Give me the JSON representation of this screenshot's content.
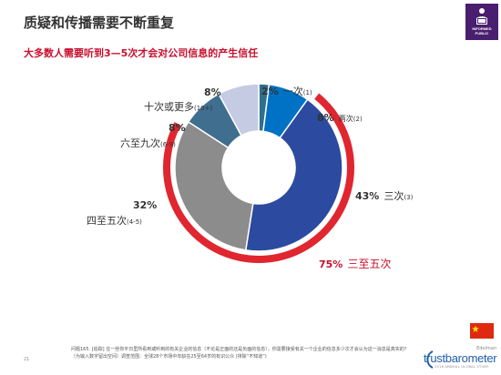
{
  "title": "质疑和传播需要不断重复",
  "subtitle": "大多数人需要听到3—5次才会对公司信息的产生信任",
  "badge": {
    "line1": "INFORMED",
    "line2": "PUBLIC"
  },
  "chart_data": {
    "type": "pie",
    "donut": true,
    "slices": [
      {
        "label": "一次",
        "sub": "(1)",
        "pct_label": "2%",
        "value": 2,
        "color": "#2e6f8e"
      },
      {
        "label": "两次",
        "sub": "(2)",
        "pct_label": "8%",
        "value": 8,
        "color": "#0072c6"
      },
      {
        "label": "三次",
        "sub": "(3)",
        "pct_label": "43%",
        "value": 43,
        "color": "#2b4aa0"
      },
      {
        "label": "四至五次",
        "sub": "(4-5)",
        "pct_label": "32%",
        "value": 32,
        "color": "#8c8c8c"
      },
      {
        "label": "六至九次",
        "sub": "(6-9)",
        "pct_label": "8%",
        "value": 8,
        "color": "#3f6e8f"
      },
      {
        "label": "十次或更多",
        "sub": "(10+)",
        "pct_label": "8%",
        "value": 8,
        "color": "#c5cbe3"
      }
    ],
    "highlight": {
      "label": "三至五次",
      "pct_label": "75%",
      "color": "#e0262f"
    }
  },
  "footnote": "问题165. [追踪] 在一些你平日里所看到或听到的有关企业的信息（不论是正面的还是负面的信息），你需要接受有关一个企业的信息多少次才会认为这一消息是真实的？（为输入数字留出空间）调查范围：全球28个市场中年龄在25至64岁的有识公众 (排除“不知道”)",
  "page_number": "21",
  "brand": {
    "company": "Edelman",
    "product": "trustbarometer",
    "tagline": "2016 ANNUAL GLOBAL STUDY"
  }
}
